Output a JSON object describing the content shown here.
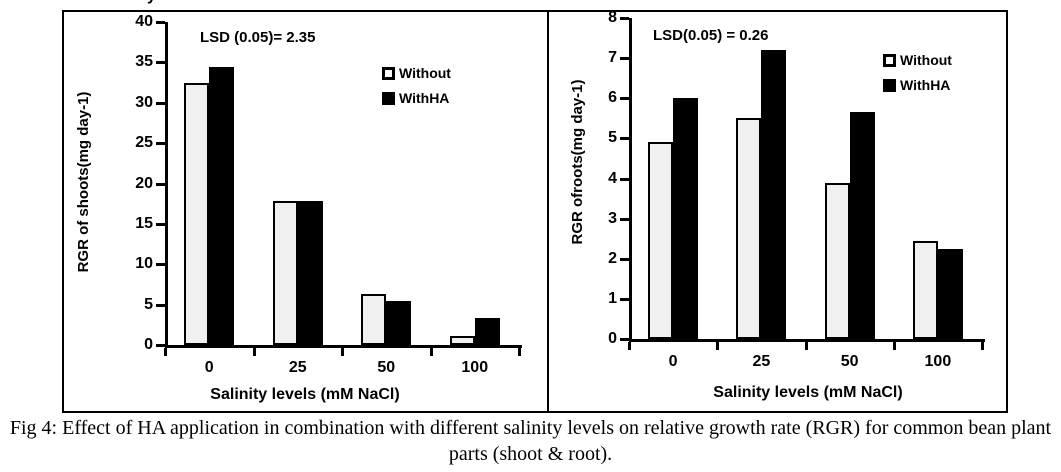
{
  "stray_fragment": "y",
  "colors": {
    "without_fill": "#f0f0f0",
    "withha_fill": "#000000",
    "axis": "#000000",
    "background": "#ffffff"
  },
  "caption": {
    "text": "Fig 4: Effect of HA application in combination with different salinity levels on relative growth rate (RGR) for common bean plant parts (shoot & root)."
  },
  "chart_data": [
    {
      "id": "shoots",
      "type": "bar",
      "lsd_label": "LSD (0.05)= 2.35",
      "ylabel": "RGR of shoots(mg day-1)",
      "xlabel": "Salinity levels (mM NaCl)",
      "categories": [
        "0",
        "25",
        "50",
        "100"
      ],
      "series": [
        {
          "name": "Without",
          "values": [
            32.5,
            17.8,
            6.3,
            1.1
          ]
        },
        {
          "name": "WithHA",
          "values": [
            34.4,
            17.8,
            5.4,
            3.3
          ]
        }
      ],
      "ylim": [
        0,
        40
      ],
      "ytick_step": 5,
      "legend_position": "upper right",
      "grid": false
    },
    {
      "id": "roots",
      "type": "bar",
      "lsd_label": "LSD(0.05) = 0.26",
      "ylabel": "RGR ofroots(mg day-1)",
      "xlabel": "Salinity levels (mM NaCl)",
      "categories": [
        "0",
        "25",
        "50",
        "100"
      ],
      "series": [
        {
          "name": "Without",
          "values": [
            4.9,
            5.5,
            3.9,
            2.45
          ]
        },
        {
          "name": "WithHA",
          "values": [
            6.0,
            7.2,
            5.65,
            2.25
          ]
        }
      ],
      "ylim": [
        0,
        8
      ],
      "ytick_step": 1,
      "legend_position": "upper right",
      "grid": false
    }
  ]
}
